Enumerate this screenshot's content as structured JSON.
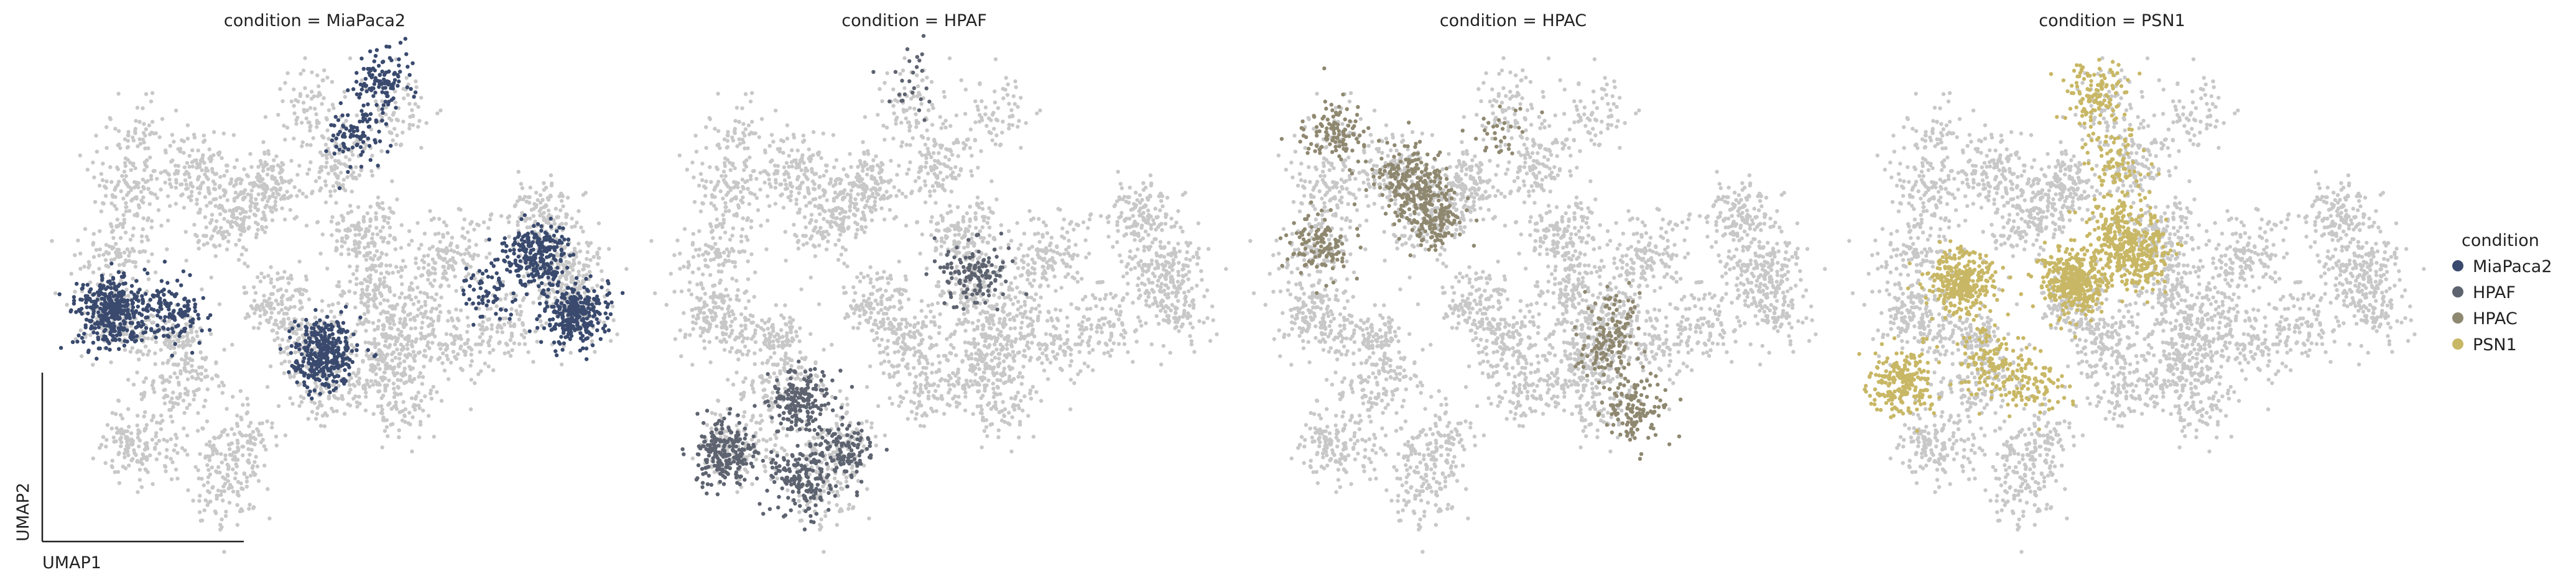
{
  "chart_data": {
    "type": "scatter",
    "embedding": "UMAP",
    "xlabel": "UMAP1",
    "ylabel": "UMAP2",
    "background_color": "#c8c8c8",
    "panels": [
      {
        "title": "condition = MiaPaca2",
        "highlight": "MiaPaca2"
      },
      {
        "title": "condition = HPAF",
        "highlight": "HPAF"
      },
      {
        "title": "condition = HPAC",
        "highlight": "HPAC"
      },
      {
        "title": "condition = PSN1",
        "highlight": "PSN1"
      }
    ],
    "legend": {
      "title": "condition",
      "placement": "right",
      "entries": [
        {
          "name": "MiaPaca2",
          "color": "#3a4a6e"
        },
        {
          "name": "HPAF",
          "color": "#5e6370"
        },
        {
          "name": "HPAC",
          "color": "#8f8870"
        },
        {
          "name": "PSN1",
          "color": "#c8b765"
        }
      ]
    },
    "clusters": [
      {
        "x": 0.14,
        "y": 0.83,
        "n": 60
      },
      {
        "x": 0.13,
        "y": 0.72,
        "n": 110
      },
      {
        "x": 0.25,
        "y": 0.76,
        "n": 130
      },
      {
        "x": 0.38,
        "y": 0.72,
        "n": 180
      },
      {
        "x": 0.31,
        "y": 0.64,
        "n": 130
      },
      {
        "x": 0.1,
        "y": 0.58,
        "n": 110
      },
      {
        "x": 0.52,
        "y": 0.77,
        "n": 120
      },
      {
        "x": 0.56,
        "y": 0.62,
        "n": 160
      },
      {
        "x": 0.47,
        "y": 0.9,
        "n": 70
      },
      {
        "x": 0.62,
        "y": 0.88,
        "n": 70
      },
      {
        "x": 0.58,
        "y": 0.5,
        "n": 120
      },
      {
        "x": 0.7,
        "y": 0.56,
        "n": 90
      },
      {
        "x": 0.65,
        "y": 0.44,
        "n": 120
      },
      {
        "x": 0.4,
        "y": 0.48,
        "n": 110
      },
      {
        "x": 0.46,
        "y": 0.4,
        "n": 140
      },
      {
        "x": 0.1,
        "y": 0.44,
        "n": 160
      },
      {
        "x": 0.22,
        "y": 0.4,
        "n": 110
      },
      {
        "x": 0.22,
        "y": 0.3,
        "n": 110
      },
      {
        "x": 0.14,
        "y": 0.18,
        "n": 150
      },
      {
        "x": 0.33,
        "y": 0.18,
        "n": 130
      },
      {
        "x": 0.3,
        "y": 0.08,
        "n": 90
      },
      {
        "x": 0.5,
        "y": 0.3,
        "n": 110
      },
      {
        "x": 0.6,
        "y": 0.36,
        "n": 170
      },
      {
        "x": 0.64,
        "y": 0.26,
        "n": 90
      },
      {
        "x": 0.75,
        "y": 0.6,
        "n": 60
      },
      {
        "x": 0.82,
        "y": 0.43,
        "n": 90
      },
      {
        "x": 0.94,
        "y": 0.54,
        "n": 160
      },
      {
        "x": 0.95,
        "y": 0.46,
        "n": 110
      },
      {
        "x": 0.9,
        "y": 0.66,
        "n": 140
      },
      {
        "x": 0.74,
        "y": 0.38,
        "n": 80
      }
    ],
    "highlights": {
      "MiaPaca2": [
        {
          "x": 0.6,
          "y": 0.95,
          "n": 110
        },
        {
          "x": 0.55,
          "y": 0.84,
          "n": 90
        },
        {
          "x": 0.09,
          "y": 0.46,
          "n": 360
        },
        {
          "x": 0.2,
          "y": 0.46,
          "n": 140
        },
        {
          "x": 0.49,
          "y": 0.37,
          "n": 340
        },
        {
          "x": 0.89,
          "y": 0.58,
          "n": 250
        },
        {
          "x": 0.96,
          "y": 0.45,
          "n": 280
        },
        {
          "x": 0.8,
          "y": 0.49,
          "n": 70
        }
      ],
      "HPAF": [
        {
          "x": 0.12,
          "y": 0.16,
          "n": 220
        },
        {
          "x": 0.26,
          "y": 0.1,
          "n": 160
        },
        {
          "x": 0.34,
          "y": 0.16,
          "n": 120
        },
        {
          "x": 0.26,
          "y": 0.27,
          "n": 180
        },
        {
          "x": 0.58,
          "y": 0.54,
          "n": 130
        },
        {
          "x": 0.47,
          "y": 0.96,
          "n": 25
        }
      ],
      "HPAC": [
        {
          "x": 0.14,
          "y": 0.84,
          "n": 110
        },
        {
          "x": 0.28,
          "y": 0.74,
          "n": 190
        },
        {
          "x": 0.32,
          "y": 0.66,
          "n": 170
        },
        {
          "x": 0.11,
          "y": 0.6,
          "n": 120
        },
        {
          "x": 0.64,
          "y": 0.38,
          "n": 90
        },
        {
          "x": 0.7,
          "y": 0.25,
          "n": 130
        },
        {
          "x": 0.66,
          "y": 0.45,
          "n": 50
        },
        {
          "x": 0.46,
          "y": 0.84,
          "n": 30
        }
      ],
      "PSN1": [
        {
          "x": 0.44,
          "y": 0.92,
          "n": 130
        },
        {
          "x": 0.48,
          "y": 0.78,
          "n": 90
        },
        {
          "x": 0.4,
          "y": 0.52,
          "n": 400
        },
        {
          "x": 0.52,
          "y": 0.58,
          "n": 260
        },
        {
          "x": 0.48,
          "y": 0.63,
          "n": 140
        },
        {
          "x": 0.19,
          "y": 0.52,
          "n": 330
        },
        {
          "x": 0.08,
          "y": 0.31,
          "n": 220
        },
        {
          "x": 0.24,
          "y": 0.36,
          "n": 110
        },
        {
          "x": 0.32,
          "y": 0.3,
          "n": 110
        }
      ]
    }
  }
}
